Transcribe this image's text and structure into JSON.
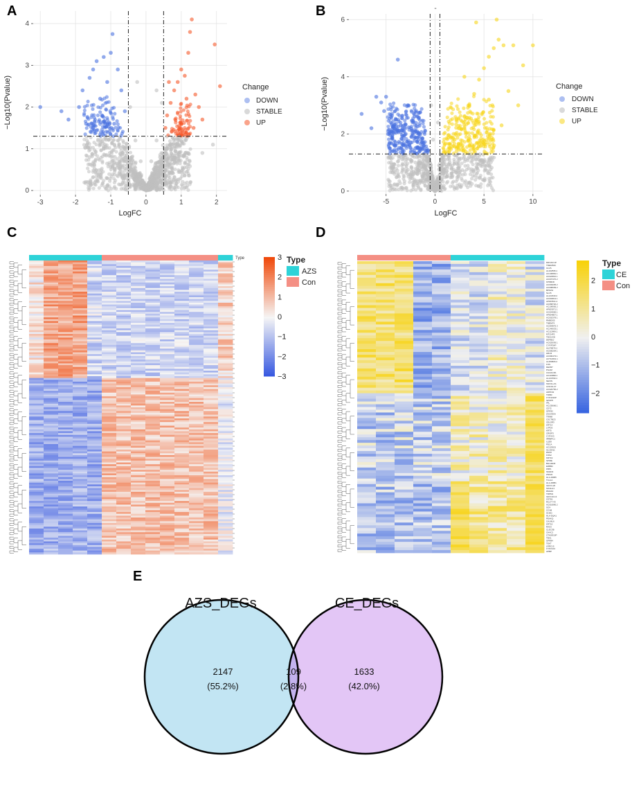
{
  "panels": {
    "A": "A",
    "B": "B",
    "C": "C",
    "D": "D",
    "E": "E"
  },
  "chart_data": [
    {
      "id": "volcano-A",
      "type": "scatter",
      "xlabel": "LogFC",
      "ylabel": "−Log10(Pvalue)",
      "xlim": [
        -3.2,
        2.3
      ],
      "ylim": [
        -0.1,
        4.3
      ],
      "xticks": [
        -3,
        -2,
        -1,
        0,
        1,
        2
      ],
      "yticks": [
        0,
        1,
        2,
        3,
        4
      ],
      "thresholds": {
        "logfc": [
          -0.5,
          0.5
        ],
        "pvalue_line": 1.3
      },
      "legend_title": "Change",
      "legend": [
        "DOWN",
        "STABLE",
        "UP"
      ],
      "colors": {
        "DOWN": "#4a72e0",
        "STABLE": "#c0c0c0",
        "UP": "#f5582a"
      },
      "series": [
        {
          "name": "DOWN",
          "points": [
            [
              -3.0,
              2.0
            ],
            [
              -2.4,
              1.9
            ],
            [
              -2.2,
              1.7
            ],
            [
              -1.9,
              2.0
            ],
            [
              -1.8,
              2.4
            ],
            [
              -1.6,
              2.7
            ],
            [
              -1.5,
              2.9
            ],
            [
              -1.4,
              3.1
            ],
            [
              -1.2,
              3.2
            ],
            [
              -1.0,
              3.3
            ],
            [
              -0.95,
              3.75
            ],
            [
              -1.3,
              2.2
            ],
            [
              -1.1,
              2.6
            ],
            [
              -0.8,
              2.9
            ],
            [
              -0.7,
              2.4
            ],
            [
              -1.7,
              1.6
            ],
            [
              -1.5,
              1.5
            ],
            [
              -0.6,
              1.9
            ],
            [
              -0.9,
              1.6
            ],
            [
              -1.25,
              1.8
            ]
          ]
        },
        {
          "name": "UP",
          "points": [
            [
              0.55,
              1.5
            ],
            [
              0.6,
              1.8
            ],
            [
              0.7,
              2.1
            ],
            [
              0.8,
              2.4
            ],
            [
              0.9,
              2.6
            ],
            [
              1.0,
              2.9
            ],
            [
              1.1,
              2.75
            ],
            [
              1.2,
              3.3
            ],
            [
              1.25,
              3.8
            ],
            [
              1.3,
              4.1
            ],
            [
              1.4,
              2.3
            ],
            [
              1.5,
              2.0
            ],
            [
              1.6,
              1.7
            ],
            [
              1.95,
              3.5
            ],
            [
              2.1,
              2.5
            ],
            [
              1.0,
              1.6
            ],
            [
              0.65,
              2.6
            ],
            [
              1.15,
              2.2
            ],
            [
              1.35,
              1.5
            ]
          ]
        },
        {
          "name": "STABLE",
          "points": [
            [
              0.0,
              0.0
            ],
            [
              -0.2,
              0.4
            ],
            [
              0.2,
              0.4
            ],
            [
              -0.4,
              0.8
            ],
            [
              0.4,
              0.8
            ],
            [
              -0.6,
              1.0
            ],
            [
              0.6,
              1.0
            ],
            [
              -0.9,
              1.1
            ],
            [
              0.9,
              1.1
            ],
            [
              -1.2,
              1.0
            ],
            [
              1.2,
              0.9
            ],
            [
              -0.3,
              1.2
            ],
            [
              0.3,
              1.2
            ],
            [
              -0.15,
              0.7
            ],
            [
              0.15,
              0.7
            ],
            [
              -0.45,
              2.0
            ],
            [
              0.45,
              2.1
            ],
            [
              -0.25,
              2.6
            ],
            [
              0.3,
              2.4
            ],
            [
              -1.6,
              0.8
            ],
            [
              1.6,
              0.9
            ],
            [
              1.9,
              1.1
            ]
          ]
        }
      ]
    },
    {
      "id": "volcano-B",
      "type": "scatter",
      "title": "-",
      "xlabel": "LogFC",
      "ylabel": "−Log10(Pvalue)",
      "xlim": [
        -8.8,
        11
      ],
      "ylim": [
        -0.1,
        6.2
      ],
      "xticks": [
        -5,
        0,
        5,
        10
      ],
      "yticks": [
        0,
        2,
        4,
        6
      ],
      "thresholds": {
        "logfc": [
          -0.5,
          0.5
        ],
        "pvalue_line": 1.3
      },
      "legend_title": "Change",
      "legend": [
        "DOWN",
        "STABLE",
        "UP"
      ],
      "colors": {
        "DOWN": "#4a72e0",
        "STABLE": "#c0c0c0",
        "UP": "#f7d51b"
      },
      "series": [
        {
          "name": "DOWN",
          "points": [
            [
              -7.5,
              2.7
            ],
            [
              -6.0,
              3.3
            ],
            [
              -5.5,
              3.1
            ],
            [
              -5.0,
              3.3
            ],
            [
              -4.5,
              2.6
            ],
            [
              -4.0,
              2.5
            ],
            [
              -3.8,
              4.6
            ],
            [
              -3.5,
              2.3
            ],
            [
              -3.0,
              2.0
            ],
            [
              -2.5,
              1.7
            ],
            [
              -2.0,
              1.5
            ],
            [
              -4.8,
              2.0
            ],
            [
              -4.2,
              2.2
            ],
            [
              -3.2,
              1.6
            ],
            [
              -6.5,
              2.2
            ],
            [
              -5.2,
              2.8
            ],
            [
              -2.8,
              3.0
            ]
          ]
        },
        {
          "name": "UP",
          "points": [
            [
              1.5,
              1.5
            ],
            [
              2.0,
              1.8
            ],
            [
              2.5,
              2.2
            ],
            [
              3.0,
              2.6
            ],
            [
              3.5,
              3.0
            ],
            [
              4.0,
              3.4
            ],
            [
              4.5,
              3.9
            ],
            [
              5.0,
              4.3
            ],
            [
              5.5,
              4.7
            ],
            [
              6.0,
              5.0
            ],
            [
              6.5,
              5.3
            ],
            [
              7.0,
              5.1
            ],
            [
              8.0,
              5.1
            ],
            [
              9.0,
              4.4
            ],
            [
              10.0,
              5.1
            ],
            [
              4.2,
              5.9
            ],
            [
              6.3,
              6.0
            ],
            [
              5.5,
              3.2
            ],
            [
              7.5,
              3.5
            ],
            [
              8.5,
              3.0
            ],
            [
              3.0,
              4.0
            ],
            [
              2.2,
              1.5
            ],
            [
              6.8,
              2.3
            ]
          ]
        },
        {
          "name": "STABLE",
          "points": [
            [
              0.0,
              0.0
            ],
            [
              -0.3,
              0.4
            ],
            [
              0.3,
              0.4
            ],
            [
              -0.8,
              0.7
            ],
            [
              0.8,
              0.7
            ],
            [
              -1.5,
              1.0
            ],
            [
              1.5,
              1.0
            ],
            [
              -2.5,
              1.1
            ],
            [
              2.5,
              1.1
            ],
            [
              -3.5,
              1.2
            ],
            [
              3.5,
              1.2
            ],
            [
              -4.5,
              1.0
            ],
            [
              4.5,
              1.1
            ],
            [
              -0.2,
              1.8
            ],
            [
              0.3,
              2.4
            ],
            [
              -0.4,
              3.0
            ],
            [
              5.5,
              0.9
            ]
          ]
        }
      ]
    },
    {
      "id": "heatmap-C",
      "type": "heatmap",
      "annotation_label": "Type",
      "legend_title": "Type",
      "groups": [
        {
          "name": "AZS",
          "color": "#2ed3d8"
        },
        {
          "name": "Con",
          "color": "#f48f84"
        }
      ],
      "column_groups": [
        "AZS",
        "AZS",
        "AZS",
        "AZS",
        "AZS",
        "Con",
        "Con",
        "Con",
        "Con",
        "Con",
        "Con",
        "Con",
        "Con",
        "AZS"
      ],
      "colorbar_ticks": [
        3,
        2,
        1,
        0,
        -1,
        -2,
        -3
      ],
      "colorbar_colors": [
        "#3355e0",
        "#f5f5f5",
        "#f04a0c"
      ],
      "value_range": [
        -3,
        3
      ]
    },
    {
      "id": "heatmap-D",
      "type": "heatmap",
      "legend_title": "Type",
      "groups": [
        {
          "name": "CE",
          "color": "#2ed3d8"
        },
        {
          "name": "Con",
          "color": "#f48f84"
        }
      ],
      "column_groups": [
        "Con",
        "Con",
        "Con",
        "Con",
        "Con",
        "CE",
        "CE",
        "CE",
        "CE",
        "CE"
      ],
      "colorbar_ticks": [
        2,
        1,
        0,
        -1,
        -2
      ],
      "colorbar_colors": [
        "#3361e0",
        "#f0f0f0",
        "#f8d20a"
      ],
      "value_range": [
        -2.7,
        2.7
      ],
      "gene_labels": [
        "DRXAIC1P",
        "TMEM63C",
        "CLVS",
        "AL162595.1",
        "AC106881.1",
        "AC022810.1",
        "AC007470.2",
        "KPNB2D",
        "AC003005.2",
        "AC008009.2",
        "BPIFA3",
        "SLC5",
        "AL121840.2",
        "AC004813.1",
        "AP003511.2",
        "AC068720.2",
        "AC109905.2",
        "AP003071.1",
        "AC024082.1",
        "AP004857.1",
        "AC002378.1",
        "RMBDS5",
        "TMEM74",
        "AC064875.3",
        "AC140633.1",
        "AC112806.1",
        "MTCHP3",
        "TBC1D32",
        "DEFB10",
        "AC025036.1",
        "CYFIP3AP",
        "AL078570.1",
        "AC005264.1",
        "HRH3",
        "AC090473.1",
        "ACT10661.1",
        "AL359806.2",
        "FOS",
        "DEFB7",
        "PGAM",
        "CGNACR1",
        "AC119899.1",
        "AL121590.1",
        "NEXIN",
        "SNX31-AS",
        "LINC01-37",
        "AC020756.2",
        "ADPF02",
        "TRIB3",
        "CYP4F30P",
        "SPOP5",
        "IFIL",
        "AC135666.1",
        "CD72",
        "GPR32",
        "ZSCAN5A",
        "TRIM8",
        "CSCTB23",
        "CELSR3",
        "KRT14",
        "LYPD3",
        "KRT5",
        "CRISP3",
        "CYP4V3",
        "IRRBPC1",
        "IL1E8",
        "PDCA",
        "AC123021",
        "SLC6A11",
        "RNF8",
        "FOS2",
        "KRT19",
        "SPIRE",
        "BHLHE40",
        "ERBB2",
        "FBP1",
        "SMAD3",
        "ZNF22",
        "HLA-DRB5",
        "TCL1A",
        "HLA-DRB1",
        "IGKV3-20",
        "SOHLH1",
        "RMHF2",
        "TRPM1",
        "IGKV1D-13",
        "OSTA1",
        "RCLT7-43",
        "AC010890.2",
        "SOX",
        "CCN8",
        "GHAD",
        "HLA-DQA1",
        "PEAKQ",
        "CALML6",
        "KRT15",
        "RAS3",
        "CLEC3B",
        "CHAC1",
        "CTAGE10P",
        "TBX1",
        "GPR84",
        "TEKT",
        "LRRC15",
        "CYP2A13",
        "APBP"
      ]
    },
    {
      "id": "venn-E",
      "type": "venn",
      "sets": [
        {
          "name": "AZS_DEGs",
          "color": "#c2e5f3"
        },
        {
          "name": "CE_DEGs",
          "color": "#e3c6f6"
        }
      ],
      "intersection_color": "#c3b2ee",
      "regions": [
        {
          "label": "AZS_DEGs only",
          "count": "2147",
          "percent": "(55.2%)"
        },
        {
          "label": "intersection",
          "count": "109",
          "percent": "(2.8%)"
        },
        {
          "label": "CE_DEGs only",
          "count": "1633",
          "percent": "(42.0%)"
        }
      ]
    }
  ]
}
